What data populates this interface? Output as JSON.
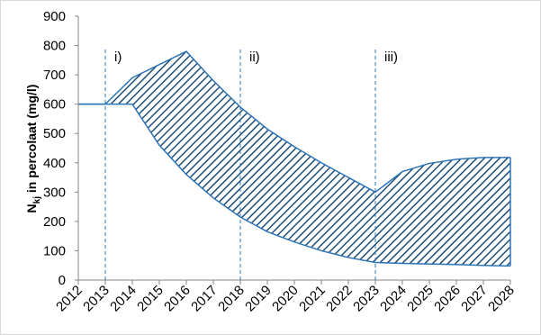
{
  "chart_data": {
    "type": "band",
    "y_label": {
      "main": "N",
      "sub": "kj",
      "rest": " in percolaat (mg/l)"
    },
    "categories": [
      "2012",
      "2013",
      "2014",
      "2015",
      "2016",
      "2017",
      "2018",
      "2019",
      "2020",
      "2021",
      "2022",
      "2023",
      "2024",
      "2025",
      "2026",
      "2027",
      "2028"
    ],
    "series": [
      {
        "color": "#2e75b6",
        "values": [
          600,
          600,
          690,
          735,
          780,
          680,
          590,
          515,
          455,
          400,
          350,
          300,
          370,
          398,
          412,
          418,
          418
        ]
      },
      {
        "color": "#2e75b6",
        "values": [
          600,
          600,
          600,
          460,
          360,
          280,
          215,
          165,
          130,
          100,
          77,
          60,
          57,
          55,
          53,
          50,
          48
        ]
      }
    ],
    "hatch_color": "#1f4e79",
    "markers": [
      {
        "x": "2013",
        "label": "i)"
      },
      {
        "x": "2018",
        "label": "ii)"
      },
      {
        "x": "2023",
        "label": "iii)"
      }
    ],
    "marker_color": "#2e75b6",
    "ylim": [
      0,
      900
    ],
    "yticks": [
      0,
      100,
      200,
      300,
      400,
      500,
      600,
      700,
      800,
      900
    ]
  }
}
